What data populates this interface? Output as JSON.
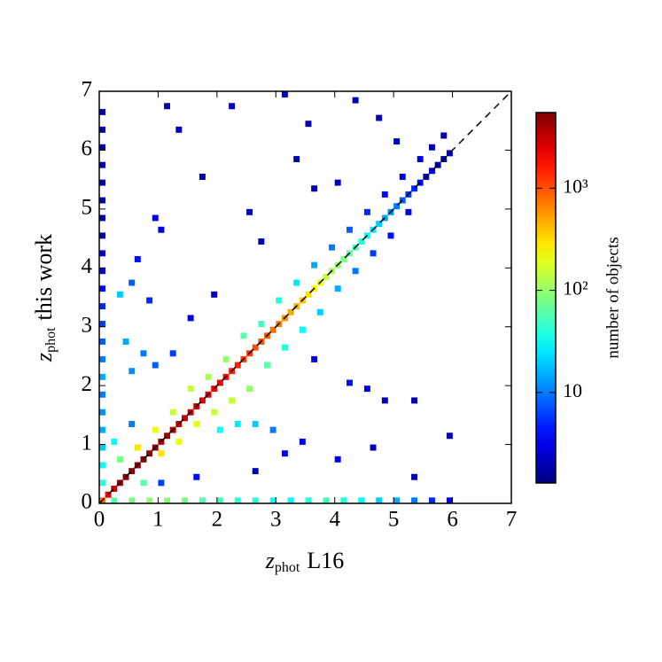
{
  "chart_data": {
    "type": "hist2d",
    "x_label": "z",
    "x_label_sub": "phot",
    "x_label_rest": "L16",
    "y_label": "z",
    "y_label_sub": "phot",
    "y_label_rest": "this work",
    "colorbar_label": "number of objects",
    "xlim": [
      0,
      7
    ],
    "ylim": [
      0,
      7
    ],
    "xticks": [
      0,
      1,
      2,
      3,
      4,
      5,
      6,
      7
    ],
    "yticks": [
      0,
      1,
      2,
      3,
      4,
      5,
      6,
      7
    ],
    "bin_width": 0.1,
    "colormap": "jet",
    "color_scale": "log",
    "clim": [
      1.3,
      5500
    ],
    "cticks": [
      {
        "value": 10,
        "label": "10"
      },
      {
        "value": 100,
        "label": "10²"
      },
      {
        "value": 1000,
        "label": "10³"
      }
    ],
    "cells": [
      [
        0.0,
        0.0,
        800
      ],
      [
        0.1,
        0.1,
        2000
      ],
      [
        0.2,
        0.2,
        3000
      ],
      [
        0.3,
        0.3,
        4000
      ],
      [
        0.4,
        0.4,
        5000
      ],
      [
        0.5,
        0.5,
        5000
      ],
      [
        0.6,
        0.6,
        5000
      ],
      [
        0.7,
        0.7,
        5000
      ],
      [
        0.8,
        0.8,
        4500
      ],
      [
        0.9,
        0.9,
        4500
      ],
      [
        1.0,
        1.0,
        4000
      ],
      [
        1.1,
        1.1,
        4000
      ],
      [
        1.2,
        1.2,
        3500
      ],
      [
        1.3,
        1.3,
        3500
      ],
      [
        1.4,
        1.4,
        3000
      ],
      [
        1.5,
        1.5,
        3000
      ],
      [
        1.6,
        1.6,
        3000
      ],
      [
        1.7,
        1.7,
        2500
      ],
      [
        1.8,
        1.8,
        2500
      ],
      [
        1.9,
        1.9,
        2000
      ],
      [
        2.0,
        2.0,
        2000
      ],
      [
        2.1,
        2.1,
        1800
      ],
      [
        2.2,
        2.2,
        1500
      ],
      [
        2.3,
        2.3,
        1500
      ],
      [
        2.4,
        2.4,
        1200
      ],
      [
        2.5,
        2.5,
        1200
      ],
      [
        2.6,
        2.6,
        1000
      ],
      [
        2.7,
        2.7,
        1000
      ],
      [
        2.8,
        2.8,
        900
      ],
      [
        2.9,
        2.9,
        800
      ],
      [
        3.0,
        3.0,
        700
      ],
      [
        3.1,
        3.1,
        600
      ],
      [
        3.2,
        3.2,
        500
      ],
      [
        3.3,
        3.3,
        450
      ],
      [
        3.4,
        3.4,
        400
      ],
      [
        3.5,
        3.5,
        300
      ],
      [
        3.6,
        3.6,
        250
      ],
      [
        3.7,
        3.7,
        200
      ],
      [
        3.8,
        3.8,
        150
      ],
      [
        3.9,
        3.9,
        120
      ],
      [
        4.0,
        4.0,
        100
      ],
      [
        4.1,
        4.1,
        80
      ],
      [
        4.2,
        4.2,
        60
      ],
      [
        4.3,
        4.3,
        50
      ],
      [
        4.4,
        4.4,
        40
      ],
      [
        4.5,
        4.5,
        30
      ],
      [
        4.6,
        4.6,
        25
      ],
      [
        4.7,
        4.7,
        20
      ],
      [
        4.8,
        4.8,
        15
      ],
      [
        4.9,
        4.9,
        12
      ],
      [
        5.0,
        5.0,
        10
      ],
      [
        5.1,
        5.1,
        8
      ],
      [
        5.2,
        5.2,
        6
      ],
      [
        5.3,
        5.3,
        5
      ],
      [
        5.4,
        5.4,
        4
      ],
      [
        5.5,
        5.5,
        3
      ],
      [
        5.6,
        5.6,
        3
      ],
      [
        5.7,
        5.7,
        2
      ],
      [
        5.8,
        5.8,
        2
      ],
      [
        5.9,
        5.9,
        2
      ],
      [
        0.2,
        0.0,
        60
      ],
      [
        0.5,
        0.0,
        80
      ],
      [
        0.8,
        0.0,
        100
      ],
      [
        1.1,
        0.0,
        90
      ],
      [
        1.4,
        0.0,
        80
      ],
      [
        1.7,
        0.0,
        60
      ],
      [
        2.0,
        0.0,
        50
      ],
      [
        2.3,
        0.0,
        40
      ],
      [
        2.6,
        0.0,
        40
      ],
      [
        2.9,
        0.0,
        35
      ],
      [
        3.2,
        0.0,
        30
      ],
      [
        3.5,
        0.0,
        40
      ],
      [
        3.8,
        0.0,
        50
      ],
      [
        4.1,
        0.0,
        40
      ],
      [
        4.4,
        0.0,
        30
      ],
      [
        4.7,
        0.0,
        20
      ],
      [
        5.0,
        0.0,
        15
      ],
      [
        5.3,
        0.0,
        10
      ],
      [
        5.6,
        0.0,
        5
      ],
      [
        5.9,
        0.0,
        3
      ],
      [
        0.0,
        0.3,
        40
      ],
      [
        0.0,
        0.6,
        30
      ],
      [
        0.0,
        0.9,
        20
      ],
      [
        0.0,
        1.2,
        15
      ],
      [
        0.0,
        1.5,
        12
      ],
      [
        0.0,
        1.8,
        10
      ],
      [
        0.0,
        2.1,
        15
      ],
      [
        0.0,
        2.4,
        10
      ],
      [
        0.0,
        2.7,
        8
      ],
      [
        0.0,
        3.0,
        6
      ],
      [
        0.0,
        3.3,
        5
      ],
      [
        0.0,
        3.6,
        4
      ],
      [
        0.0,
        3.9,
        3
      ],
      [
        0.0,
        4.2,
        3
      ],
      [
        0.0,
        4.5,
        2
      ],
      [
        0.0,
        4.8,
        2
      ],
      [
        0.0,
        5.1,
        2
      ],
      [
        0.0,
        5.4,
        2
      ],
      [
        0.0,
        5.7,
        2
      ],
      [
        0.0,
        6.0,
        2
      ],
      [
        0.0,
        6.3,
        2
      ],
      [
        0.0,
        6.6,
        2
      ],
      [
        1.0,
        0.8,
        300
      ],
      [
        1.3,
        1.0,
        200
      ],
      [
        1.6,
        1.3,
        200
      ],
      [
        1.9,
        1.5,
        150
      ],
      [
        2.2,
        1.7,
        150
      ],
      [
        2.5,
        1.9,
        100
      ],
      [
        2.8,
        2.3,
        60
      ],
      [
        3.1,
        2.6,
        40
      ],
      [
        3.4,
        2.9,
        30
      ],
      [
        3.7,
        3.2,
        20
      ],
      [
        4.0,
        3.6,
        15
      ],
      [
        4.3,
        3.9,
        10
      ],
      [
        4.6,
        4.2,
        6
      ],
      [
        4.9,
        4.5,
        4
      ],
      [
        5.2,
        4.9,
        3
      ],
      [
        0.6,
        0.9,
        300
      ],
      [
        0.9,
        1.2,
        200
      ],
      [
        1.2,
        1.5,
        150
      ],
      [
        1.5,
        1.9,
        150
      ],
      [
        1.8,
        2.1,
        120
      ],
      [
        2.1,
        2.4,
        100
      ],
      [
        2.4,
        2.8,
        60
      ],
      [
        2.7,
        3.0,
        50
      ],
      [
        3.0,
        3.4,
        40
      ],
      [
        3.3,
        3.7,
        25
      ],
      [
        3.6,
        4.0,
        15
      ],
      [
        3.9,
        4.3,
        10
      ],
      [
        4.2,
        4.6,
        8
      ],
      [
        4.5,
        4.9,
        5
      ],
      [
        4.8,
        5.2,
        4
      ],
      [
        5.1,
        5.5,
        3
      ],
      [
        5.4,
        5.8,
        3
      ],
      [
        5.6,
        6.0,
        2
      ],
      [
        5.8,
        6.2,
        2
      ],
      [
        2.0,
        1.2,
        30
      ],
      [
        2.3,
        1.3,
        25
      ],
      [
        2.6,
        1.3,
        20
      ],
      [
        2.9,
        1.2,
        10
      ],
      [
        0.4,
        2.7,
        15
      ],
      [
        0.7,
        2.5,
        10
      ],
      [
        0.5,
        2.2,
        12
      ],
      [
        0.9,
        2.3,
        8
      ],
      [
        1.2,
        2.5,
        6
      ],
      [
        0.3,
        3.5,
        20
      ],
      [
        0.5,
        3.7,
        8
      ],
      [
        0.8,
        3.4,
        5
      ],
      [
        0.6,
        4.1,
        4
      ],
      [
        0.9,
        4.8,
        3
      ],
      [
        1.0,
        4.6,
        3
      ],
      [
        1.1,
        6.7,
        2
      ],
      [
        1.3,
        6.3,
        2
      ],
      [
        2.2,
        6.7,
        2
      ],
      [
        3.1,
        6.9,
        2
      ],
      [
        3.5,
        6.4,
        2
      ],
      [
        4.3,
        6.8,
        2
      ],
      [
        4.7,
        6.5,
        2
      ],
      [
        5.0,
        6.1,
        2
      ],
      [
        1.7,
        5.5,
        2
      ],
      [
        3.3,
        5.8,
        2
      ],
      [
        2.5,
        4.9,
        2
      ],
      [
        2.7,
        4.4,
        2
      ],
      [
        3.6,
        5.3,
        2
      ],
      [
        4.0,
        5.4,
        2
      ],
      [
        1.5,
        3.1,
        3
      ],
      [
        1.9,
        3.5,
        2
      ],
      [
        3.6,
        2.4,
        3
      ],
      [
        4.2,
        2.0,
        4
      ],
      [
        4.5,
        1.9,
        3
      ],
      [
        4.8,
        1.7,
        2
      ],
      [
        5.3,
        1.7,
        2
      ],
      [
        3.4,
        1.0,
        3
      ],
      [
        4.0,
        0.7,
        3
      ],
      [
        4.6,
        0.9,
        2
      ],
      [
        5.3,
        0.4,
        2
      ],
      [
        5.9,
        1.1,
        2
      ],
      [
        2.6,
        0.5,
        2
      ],
      [
        3.1,
        0.8,
        3
      ],
      [
        1.6,
        0.4,
        4
      ],
      [
        1.0,
        0.3,
        6
      ],
      [
        0.5,
        1.3,
        10
      ],
      [
        0.2,
        1.0,
        30
      ],
      [
        0.3,
        0.7,
        80
      ],
      [
        0.7,
        0.3,
        60
      ]
    ]
  }
}
